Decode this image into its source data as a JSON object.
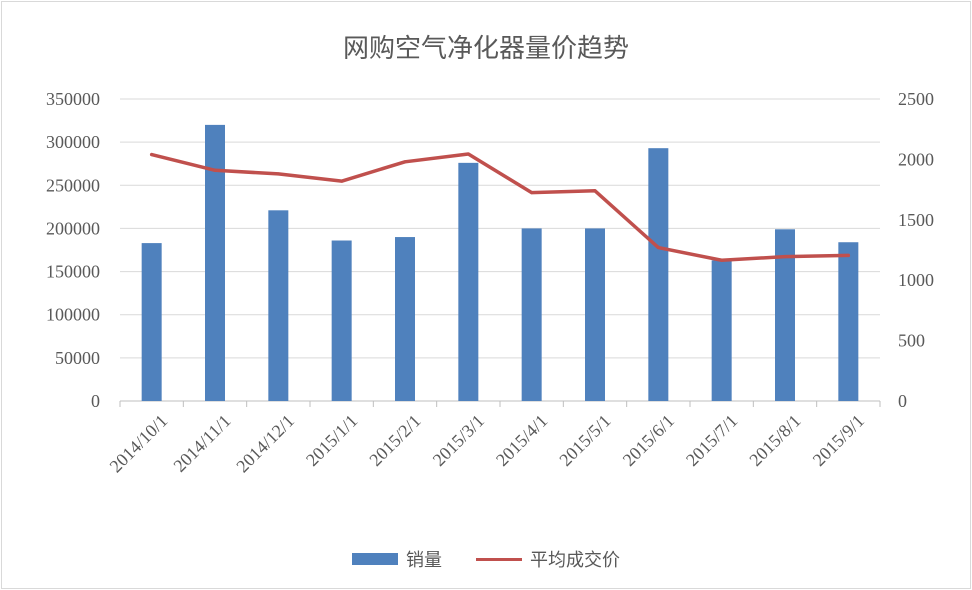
{
  "chart_data": {
    "type": "bar+line",
    "title": "网购空气净化器量价趋势",
    "categories": [
      "2014/10/1",
      "2014/11/1",
      "2014/12/1",
      "2015/1/1",
      "2015/2/1",
      "2015/3/1",
      "2015/4/1",
      "2015/5/1",
      "2015/6/1",
      "2015/7/1",
      "2015/8/1",
      "2015/9/1"
    ],
    "series": [
      {
        "name": "销量",
        "type": "bar",
        "axis": "left",
        "color": "#4f81bd",
        "values": [
          183000,
          320000,
          221000,
          186000,
          190000,
          276000,
          200000,
          200000,
          293000,
          163000,
          199000,
          184000
        ]
      },
      {
        "name": "平均成交价",
        "type": "line",
        "axis": "right",
        "color": "#c0504d",
        "values": [
          2040,
          1910,
          1880,
          1820,
          1980,
          2045,
          1725,
          1740,
          1270,
          1165,
          1195,
          1205
        ]
      }
    ],
    "y_left": {
      "min": 0,
      "max": 350000,
      "ticks": [
        "0",
        "50000",
        "100000",
        "150000",
        "200000",
        "250000",
        "300000",
        "350000"
      ]
    },
    "y_right": {
      "min": 0,
      "max": 2500,
      "ticks": [
        "0",
        "500",
        "1000",
        "1500",
        "2000",
        "2500"
      ]
    },
    "grid": true,
    "legend": "bottom"
  }
}
